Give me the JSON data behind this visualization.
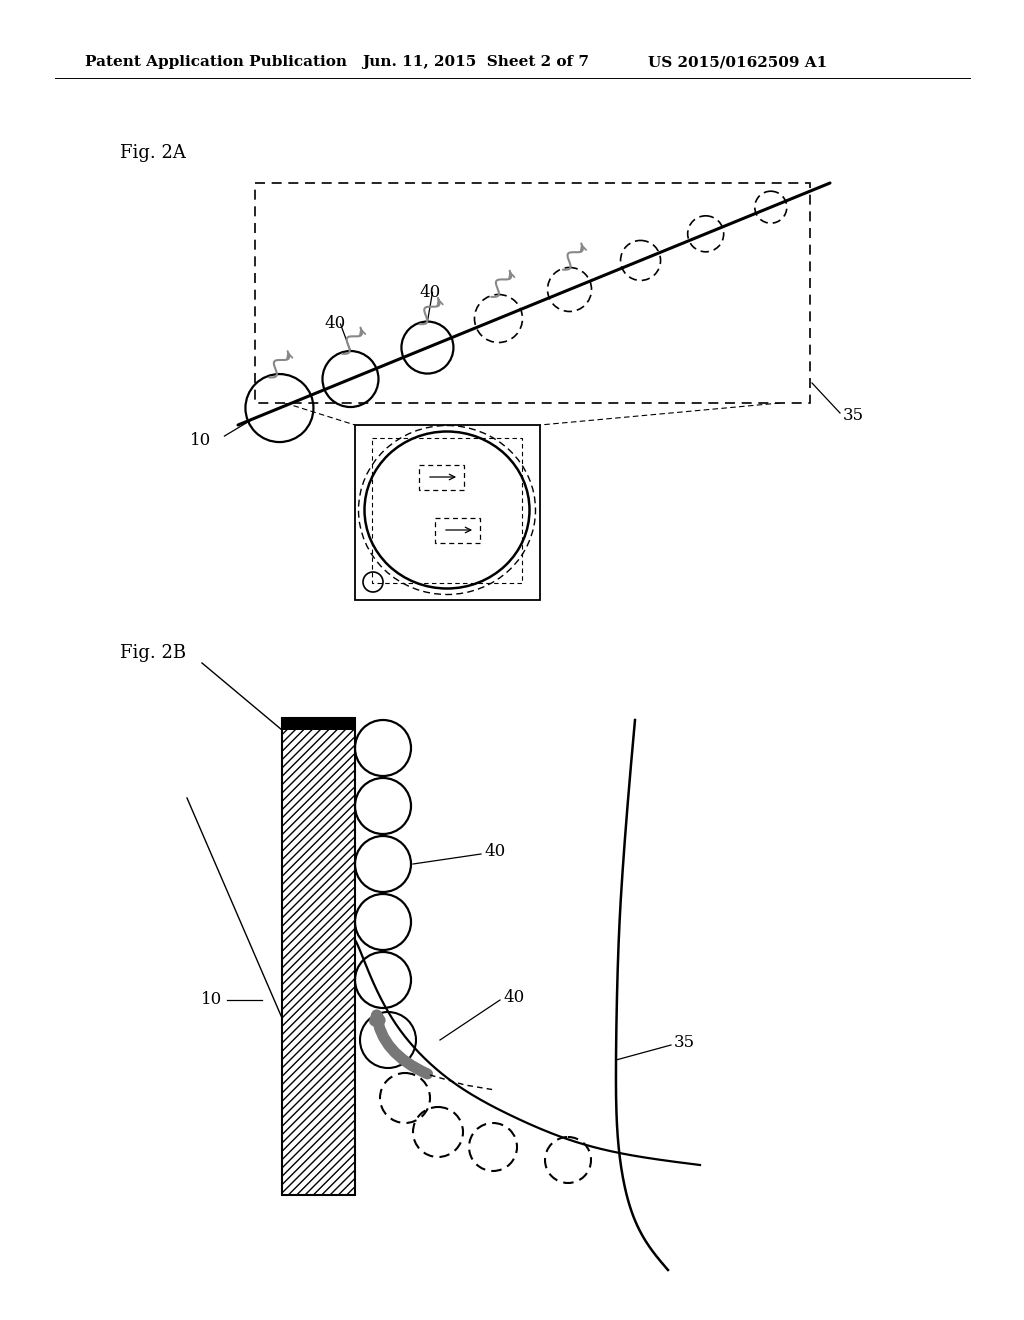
{
  "bg_color": "#ffffff",
  "header_left": "Patent Application Publication",
  "header_center": "Jun. 11, 2015  Sheet 2 of 7",
  "header_right": "US 2015/0162509 A1",
  "fig2a_label": "Fig. 2A",
  "fig2b_label": "Fig. 2B",
  "label_10_2a": "10",
  "label_35_2a": "35",
  "label_40_2a_1": "40",
  "label_40_2a_2": "40",
  "label_10_2b": "10",
  "label_40_2b_1": "40",
  "label_40_2b_2": "40",
  "label_35_2b": "35"
}
